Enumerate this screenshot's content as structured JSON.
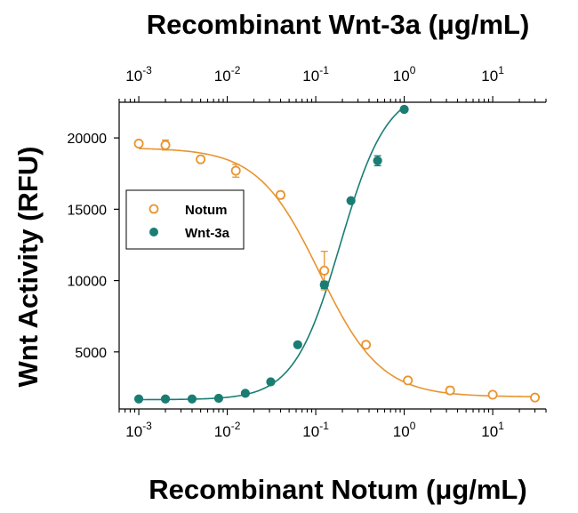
{
  "chart_data": {
    "type": "scatter",
    "x_scale": "log",
    "xlim": [
      0.0006,
      40
    ],
    "ylim": [
      1000,
      22500
    ],
    "xlabel_top": "Recombinant Wnt-3a (μg/mL)",
    "xlabel_bottom": "Recombinant Notum (μg/mL)",
    "ylabel": "Wnt Activity (RFU)",
    "x_tick_values": [
      0.001,
      0.01,
      0.1,
      1,
      10
    ],
    "x_tick_labels": [
      {
        "base": "10",
        "exp": "-3"
      },
      {
        "base": "10",
        "exp": "-2"
      },
      {
        "base": "10",
        "exp": "-1"
      },
      {
        "base": "10",
        "exp": "0"
      },
      {
        "base": "10",
        "exp": "1"
      }
    ],
    "y_ticks": [
      5000,
      10000,
      15000,
      20000
    ],
    "y_tick_labels": [
      "5000",
      "10000",
      "15000",
      "20000"
    ],
    "grid": false,
    "legend_position": "middle-left",
    "series": [
      {
        "name": "Notum",
        "color": "#E8942F",
        "marker": "open-circle",
        "x": [
          0.001,
          0.002,
          0.005,
          0.0125,
          0.04,
          0.125,
          0.37,
          1.1,
          3.3,
          10,
          30
        ],
        "y": [
          19600,
          19500,
          18500,
          17700,
          16000,
          10700,
          5500,
          3000,
          2300,
          2000,
          1800
        ],
        "error": [
          0,
          350,
          0,
          450,
          250,
          1350,
          0,
          0,
          250,
          0,
          0
        ],
        "fit": {
          "bottom": 1850,
          "top": 19300,
          "ec50": 0.11,
          "hill": -1.25,
          "x_range": [
            0.001,
            30
          ]
        }
      },
      {
        "name": "Wnt-3a",
        "color": "#1A7D74",
        "marker": "filled-circle",
        "x": [
          0.001,
          0.002,
          0.004,
          0.008,
          0.016,
          0.031,
          0.0625,
          0.125,
          0.25,
          0.5,
          1
        ],
        "y": [
          1700,
          1700,
          1700,
          1750,
          2100,
          2900,
          5500,
          9700,
          15600,
          18400,
          22000
        ],
        "error": [
          0,
          0,
          0,
          0,
          0,
          0,
          0,
          250,
          0,
          350,
          0
        ],
        "fit": {
          "bottom": 1650,
          "top": 23500,
          "ec50": 0.19,
          "hill": 1.65,
          "x_range": [
            0.001,
            1
          ]
        }
      }
    ]
  }
}
